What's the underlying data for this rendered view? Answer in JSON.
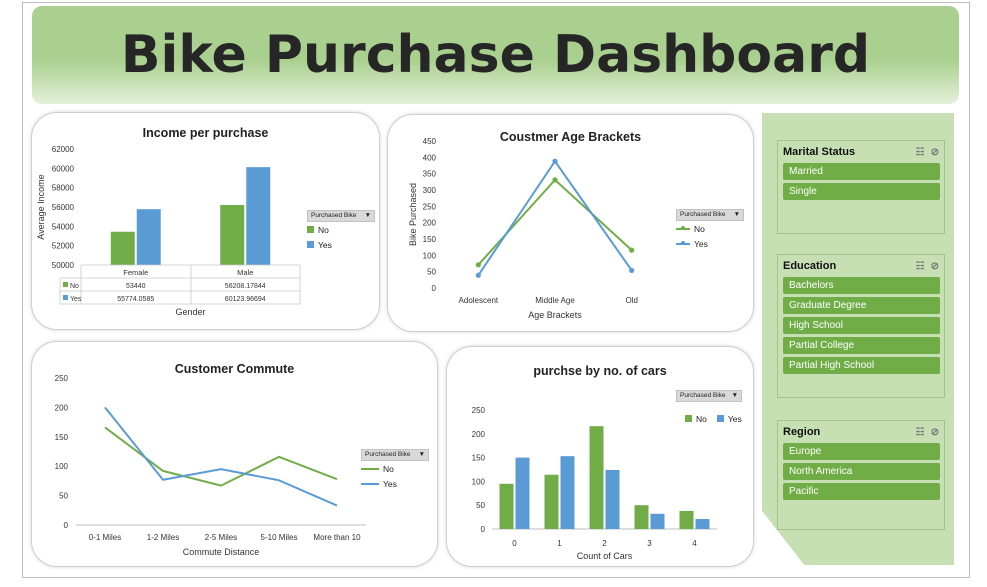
{
  "header": {
    "title": "Bike Purchase Dashboard"
  },
  "colors": {
    "no": "#70ad47",
    "yes": "#5b9bd5",
    "accent": "#a9d08e",
    "slicer_item": "#70ad47"
  },
  "legend": {
    "button_label": "Purchased Bike",
    "no_label": "No",
    "yes_label": "Yes"
  },
  "charts": {
    "income": {
      "title": "Income per purchase",
      "type": "bar",
      "xlabel": "Gender",
      "ylabel": "Average Income",
      "categories": [
        "Female",
        "Male"
      ],
      "ylim": [
        50000,
        62000
      ],
      "yticks": [
        "62000",
        "60000",
        "58000",
        "56000",
        "54000",
        "52000",
        "50000"
      ],
      "series": [
        {
          "name": "No",
          "values": [
            53440,
            56208.17844
          ],
          "table_values": [
            "53440",
            "56208.17844"
          ]
        },
        {
          "name": "Yes",
          "values": [
            55774.0585,
            60123.96694
          ],
          "table_values": [
            "55774.0585",
            "60123.96694"
          ]
        }
      ]
    },
    "age": {
      "title": "Coustmer Age Brackets",
      "type": "line",
      "xlabel": "Age Brackets",
      "ylabel": "Bike Purchased",
      "categories": [
        "Adolescent",
        "Middle Age",
        "Old"
      ],
      "ylim": [
        0,
        450
      ],
      "yticks": [
        "450",
        "400",
        "350",
        "300",
        "250",
        "200",
        "150",
        "100",
        "50",
        "0"
      ],
      "series": [
        {
          "name": "No",
          "values": [
            71,
            331,
            116
          ]
        },
        {
          "name": "Yes",
          "values": [
            39,
            388,
            54
          ]
        }
      ]
    },
    "commute": {
      "title": "Customer Commute",
      "type": "line",
      "xlabel": "Commute Distance",
      "ylabel": "",
      "categories": [
        "0-1 Miles",
        "1-2 Miles",
        "2-5 Miles",
        "5-10 Miles",
        "More than 10"
      ],
      "ylim": [
        0,
        250
      ],
      "yticks": [
        "250",
        "200",
        "150",
        "100",
        "50",
        "0"
      ],
      "series": [
        {
          "name": "No",
          "values": [
            166,
            92,
            67,
            116,
            78
          ]
        },
        {
          "name": "Yes",
          "values": [
            200,
            77,
            95,
            76,
            33
          ]
        }
      ]
    },
    "cars": {
      "title": "purchse by no. of cars",
      "type": "bar",
      "xlabel": "Count of Cars",
      "ylabel": "",
      "categories": [
        "0",
        "1",
        "2",
        "3",
        "4"
      ],
      "ylim": [
        0,
        250
      ],
      "yticks": [
        "250",
        "200",
        "150",
        "100",
        "50",
        "0"
      ],
      "series": [
        {
          "name": "No",
          "values": [
            95,
            114,
            216,
            50,
            38
          ]
        },
        {
          "name": "Yes",
          "values": [
            150,
            153,
            124,
            32,
            21
          ]
        }
      ]
    }
  },
  "slicers": {
    "marital": {
      "title": "Marital Status",
      "items": [
        "Married",
        "Single"
      ]
    },
    "education": {
      "title": "Education",
      "items": [
        "Bachelors",
        "Graduate Degree",
        "High School",
        "Partial College",
        "Partial High School"
      ]
    },
    "region": {
      "title": "Region",
      "items": [
        "Europe",
        "North America",
        "Pacific"
      ]
    }
  }
}
